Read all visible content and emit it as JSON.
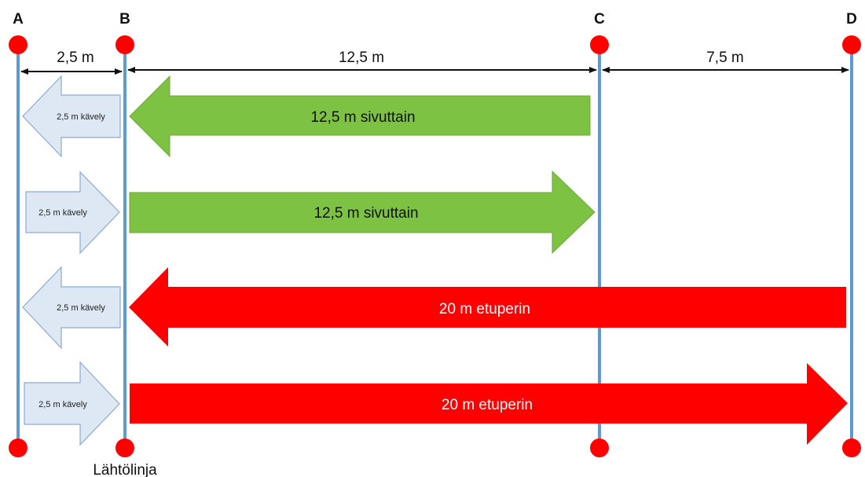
{
  "points": [
    {
      "id": "A",
      "label": "A"
    },
    {
      "id": "B",
      "label": "B"
    },
    {
      "id": "C",
      "label": "C"
    },
    {
      "id": "D",
      "label": "D"
    }
  ],
  "distances": [
    {
      "from": "A",
      "to": "B",
      "label": "2,5 m"
    },
    {
      "from": "B",
      "to": "C",
      "label": "12,5 m"
    },
    {
      "from": "C",
      "to": "D",
      "label": "7,5 m"
    }
  ],
  "start_line_label": "Lähtölinja",
  "rows": [
    {
      "walk": {
        "direction": "left",
        "label": "2,5 m kävely"
      },
      "run": {
        "direction": "left",
        "from": "C",
        "to": "B",
        "label": "12,5 m sivuttain",
        "color": "green"
      }
    },
    {
      "walk": {
        "direction": "right",
        "label": "2,5 m kävely"
      },
      "run": {
        "direction": "right",
        "from": "B",
        "to": "C",
        "label": "12,5 m sivuttain",
        "color": "green"
      }
    },
    {
      "walk": {
        "direction": "left",
        "label": "2,5 m kävely"
      },
      "run": {
        "direction": "left",
        "from": "D",
        "to": "B",
        "label": "20 m etuperin",
        "color": "red"
      }
    },
    {
      "walk": {
        "direction": "right",
        "label": "2,5 m kävely"
      },
      "run": {
        "direction": "right",
        "from": "B",
        "to": "D",
        "label": "20 m etuperin",
        "color": "red"
      }
    }
  ],
  "colors": {
    "line": "#5b9bd5",
    "dot": "#ff0000",
    "green_fill": "#7dc242",
    "green_text": "#111111",
    "red_fill": "#ff0000",
    "red_text": "#ffffff",
    "walk_fill": "#dde8f4",
    "walk_stroke": "#8eaacb"
  }
}
